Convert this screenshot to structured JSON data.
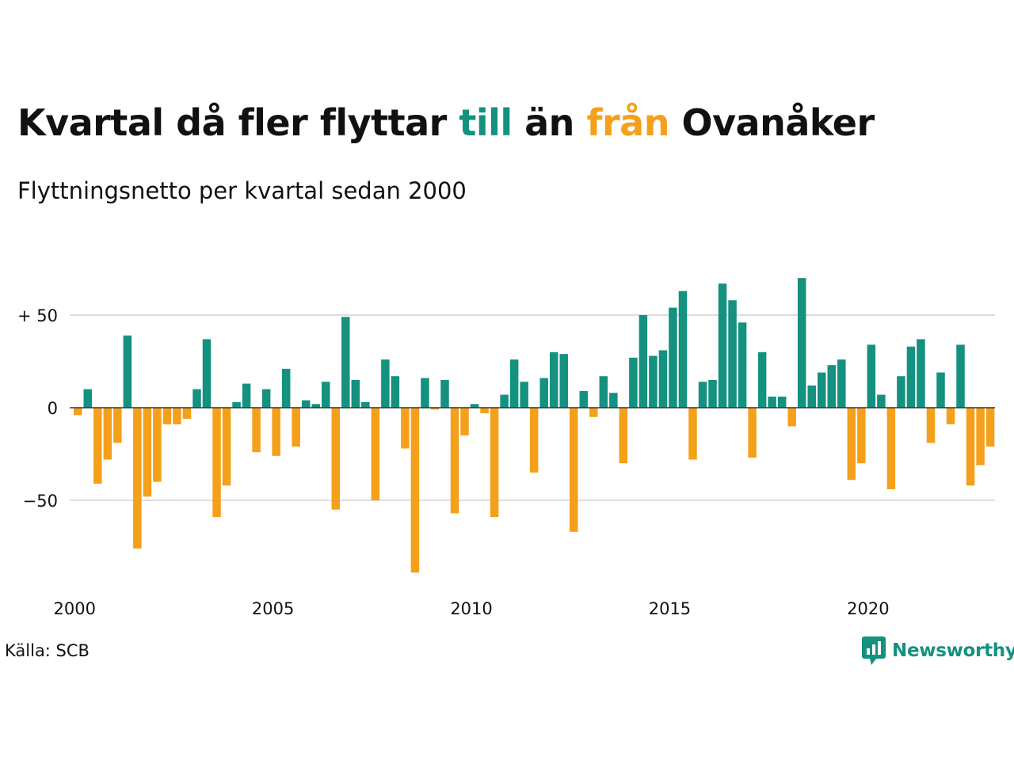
{
  "title": {
    "part1": "Kvartal då fler flyttar ",
    "highlight_to": "till",
    "part2": " än ",
    "highlight_from": "från",
    "part3": " Ovanåker"
  },
  "subtitle": "Flyttningsnetto per kvartal sedan 2000",
  "source": "Källa: SCB",
  "brand": "Newsworthy",
  "colors": {
    "positive": "#14917f",
    "negative": "#f5a01a",
    "axis": "#333333",
    "grid": "#dddddd",
    "text": "#111111"
  },
  "chart_data": {
    "type": "bar",
    "title": "Kvartal då fler flyttar till än från Ovanåker",
    "subtitle": "Flyttningsnetto per kvartal sedan 2000",
    "x_start": "2000 Q1",
    "x_tick_labels": [
      "2000",
      "2005",
      "2010",
      "2015",
      "2020"
    ],
    "y_tick_labels": [
      "+ 50",
      "0",
      "−50"
    ],
    "y_ticks": [
      50,
      0,
      -50
    ],
    "ylim": [
      -95,
      75
    ],
    "values": [
      -4,
      10,
      -41,
      -28,
      -19,
      39,
      -76,
      -48,
      -40,
      -9,
      -9,
      -6,
      10,
      37,
      -59,
      -42,
      3,
      13,
      -24,
      10,
      -26,
      21,
      -21,
      4,
      2,
      14,
      -55,
      49,
      15,
      3,
      -50,
      26,
      17,
      -22,
      -89,
      16,
      -1,
      15,
      -57,
      -15,
      2,
      -3,
      -59,
      7,
      26,
      14,
      -35,
      16,
      30,
      29,
      -67,
      9,
      -5,
      17,
      8,
      -30,
      27,
      50,
      28,
      31,
      54,
      63,
      -28,
      14,
      15,
      67,
      58,
      46,
      -27,
      30,
      6,
      6,
      -10,
      70,
      12,
      19,
      23,
      26,
      -39,
      -30,
      34,
      7,
      -44,
      17,
      33,
      37,
      -19,
      19,
      -9,
      34,
      -42,
      -31,
      -21
    ],
    "grid": true,
    "legend": "none"
  }
}
